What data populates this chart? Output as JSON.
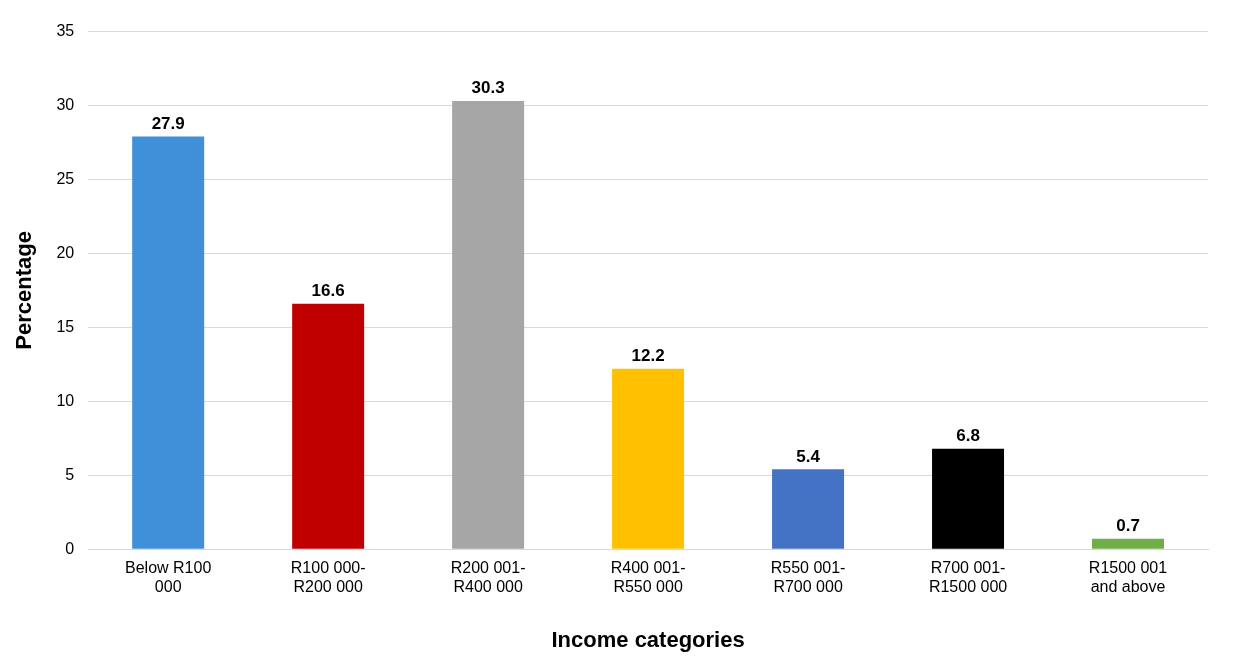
{
  "chart_data": {
    "type": "bar",
    "xlabel": "Income categories",
    "ylabel": "Percentage",
    "categories": [
      "Below R100 000",
      "R100 000-R200 000",
      "R200 001-R400 000",
      "R400 001-R550 000",
      "R550 001-R700 000",
      "R700 001-R1500 000",
      "R1500 001 and above"
    ],
    "values": [
      27.9,
      16.6,
      30.3,
      12.2,
      5.4,
      6.8,
      0.7
    ],
    "colors": [
      "#3f8fd9",
      "#c00000",
      "#a6a6a6",
      "#ffc000",
      "#4472c4",
      "#000000",
      "#70ad47"
    ],
    "ylim": [
      0,
      35
    ],
    "yticks": [
      0,
      5,
      10,
      15,
      20,
      25,
      30,
      35
    ],
    "grid": "y",
    "legend": false,
    "data_labels": true
  }
}
